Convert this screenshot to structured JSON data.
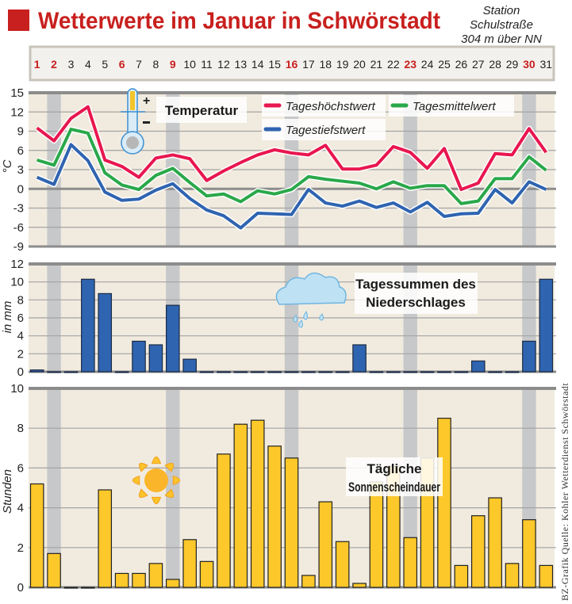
{
  "header": {
    "title": "Wetterwerte im Januar in Schwörstadt",
    "station_lines": [
      "Station",
      "Schulstraße",
      "304 m über NN"
    ],
    "accent": "#c8201e"
  },
  "days": [
    "1",
    "2",
    "3",
    "4",
    "5",
    "6",
    "7",
    "8",
    "9",
    "10",
    "11",
    "12",
    "13",
    "14",
    "15",
    "16",
    "17",
    "18",
    "19",
    "20",
    "21",
    "22",
    "23",
    "24",
    "25",
    "26",
    "27",
    "28",
    "29",
    "30",
    "31"
  ],
  "highlighted_days": [
    1,
    2,
    6,
    9,
    16,
    23,
    30
  ],
  "shaded_days": [
    2,
    9,
    16,
    23,
    30
  ],
  "credit": "BZ-Grafik   Quelle: Kohler Wetterdienst Schwörstadt",
  "chart_data": [
    {
      "type": "line",
      "title": "Temperatur",
      "ylabel": "°C",
      "ylim": [
        -9,
        15
      ],
      "yticks": [
        "15",
        "12",
        "9",
        "6",
        "3",
        "0",
        "-3",
        "-6",
        "-9"
      ],
      "x": [
        1,
        2,
        3,
        4,
        5,
        6,
        7,
        8,
        9,
        10,
        11,
        12,
        13,
        14,
        15,
        16,
        17,
        18,
        19,
        20,
        21,
        22,
        23,
        24,
        25,
        26,
        27,
        28,
        29,
        30,
        31
      ],
      "series": [
        {
          "name": "Tageshöchstwert",
          "color": "#e8174f",
          "values": [
            9.5,
            7.5,
            11,
            12.8,
            4.5,
            3.5,
            1.8,
            4.8,
            5.3,
            4.7,
            1.3,
            2.8,
            4.1,
            5.3,
            6.1,
            5.6,
            5.3,
            6.8,
            3.1,
            3.1,
            3.7,
            6.6,
            5.7,
            3.2,
            6.3,
            -0.1,
            0.9,
            5.5,
            5.3,
            9.4,
            5.7
          ]
        },
        {
          "name": "Tagesmittelwert",
          "color": "#2aa84a",
          "values": [
            4.5,
            3.7,
            9.3,
            8.7,
            2.5,
            0.6,
            -0.1,
            2.1,
            3.2,
            1.0,
            -1.1,
            -0.8,
            -2.0,
            -0.3,
            -0.8,
            -0.1,
            1.9,
            1.5,
            1.2,
            0.9,
            0.0,
            1.1,
            0.1,
            0.5,
            0.5,
            -2.3,
            -1.9,
            1.6,
            1.6,
            5.0,
            2.9
          ]
        },
        {
          "name": "Tagestiefstwert",
          "color": "#2f64b0",
          "values": [
            1.8,
            0.7,
            6.9,
            4.4,
            -0.5,
            -1.8,
            -1.6,
            -0.2,
            0.8,
            -1.5,
            -3.3,
            -4.2,
            -6.1,
            -3.8,
            -3.9,
            -4.0,
            -0.1,
            -2.2,
            -2.7,
            -1.9,
            -2.9,
            -2.2,
            -3.6,
            -2.1,
            -4.3,
            -3.9,
            -3.8,
            -0.1,
            -2.2,
            1.1,
            -0.1
          ]
        }
      ]
    },
    {
      "type": "bar",
      "title_lines": [
        "Tagessummen des",
        "Niederschlages"
      ],
      "ylabel": "in mm",
      "ylim": [
        0,
        12
      ],
      "yticks": [
        "12",
        "10",
        "8",
        "6",
        "4",
        "2",
        "0"
      ],
      "color": "#2f64b0",
      "values": [
        0.2,
        0,
        0,
        10.3,
        8.7,
        0,
        3.4,
        3.0,
        7.4,
        1.4,
        0,
        0,
        0,
        0,
        0,
        0,
        0,
        0,
        0,
        3.0,
        0,
        0,
        0,
        0,
        0,
        0,
        1.2,
        0,
        0,
        3.4,
        10.3
      ]
    },
    {
      "type": "bar",
      "title_lines": [
        "Tägliche",
        "Sonnenscheindauer"
      ],
      "ylabel": "Stunden",
      "ylim": [
        0,
        10
      ],
      "yticks": [
        "10",
        "8",
        "6",
        "4",
        "2",
        "0"
      ],
      "color": "#fdc82a",
      "values": [
        5.2,
        1.7,
        0,
        0,
        4.9,
        0.7,
        0.7,
        1.2,
        0.4,
        2.4,
        1.3,
        6.7,
        8.2,
        8.4,
        7.1,
        6.5,
        0.6,
        4.3,
        2.3,
        0.2,
        5.3,
        6.1,
        2.5,
        6.5,
        8.5,
        1.1,
        3.6,
        4.5,
        1.2,
        3.4,
        1.1
      ]
    }
  ]
}
